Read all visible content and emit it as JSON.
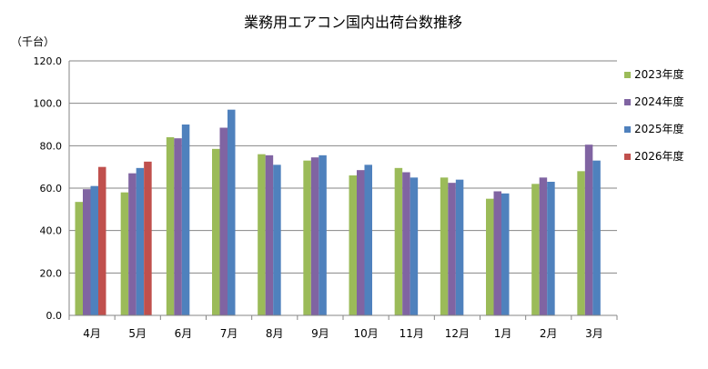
{
  "chart_data": {
    "type": "bar",
    "title": "業務用エアコン国内出荷台数推移",
    "ylabel": "（千台）",
    "xlabel": "",
    "ylim": [
      0,
      120
    ],
    "yticks": [
      "0.0",
      "20.0",
      "40.0",
      "60.0",
      "80.0",
      "100.0",
      "120.0"
    ],
    "grid": true,
    "legend_position": "right",
    "categories": [
      "4月",
      "5月",
      "6月",
      "7月",
      "8月",
      "9月",
      "10月",
      "11月",
      "12月",
      "1月",
      "2月",
      "3月"
    ],
    "series": [
      {
        "name": "2023年度",
        "color": "#9bbb59",
        "values": [
          53.5,
          58.0,
          84.0,
          78.5,
          76.0,
          73.0,
          66.0,
          69.5,
          65.0,
          55.0,
          62.0,
          68.0
        ]
      },
      {
        "name": "2024年度",
        "color": "#8064a2",
        "values": [
          59.5,
          67.0,
          83.5,
          88.5,
          75.5,
          74.5,
          68.5,
          67.5,
          62.5,
          58.5,
          65.0,
          80.5
        ]
      },
      {
        "name": "2025年度",
        "color": "#4f81bd",
        "values": [
          61.0,
          69.5,
          90.0,
          97.0,
          71.0,
          75.5,
          71.0,
          65.0,
          64.0,
          57.5,
          63.0,
          73.0
        ]
      },
      {
        "name": "2026年度",
        "color": "#c0504d",
        "values": [
          70.0,
          72.5,
          null,
          null,
          null,
          null,
          null,
          null,
          null,
          null,
          null,
          null
        ]
      }
    ]
  }
}
